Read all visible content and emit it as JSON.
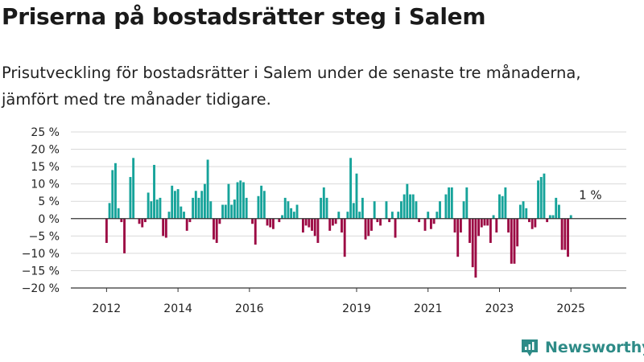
{
  "title": "Priserna på bostadsrätter steg i Salem",
  "subtitle": "Prisutveckling för bostadsrätter i Salem under de senaste tre månaderna, jämfört med tre månader tidigare.",
  "logo_text": "Newsworthy",
  "colors": {
    "positive": "#16a39a",
    "negative": "#9c0a44",
    "grid": "#d9d9d9",
    "axis": "#333333",
    "text": "#222222",
    "logo": "#2e8b87"
  },
  "chart_data": {
    "type": "bar",
    "title": "",
    "xlabel": "",
    "ylabel": "",
    "ylim": [
      -20,
      25
    ],
    "xlim": [
      2011.0,
      2026.55
    ],
    "y_ticks": [
      25,
      20,
      15,
      10,
      5,
      0,
      -5,
      -10,
      -15,
      -20
    ],
    "y_tick_labels": [
      "25 %",
      "20 %",
      "15 %",
      "10 %",
      "5 %",
      "0 %",
      "−5 %",
      "−10 %",
      "−15 %",
      "−20 %"
    ],
    "x_ticks": [
      2012,
      2014,
      2016,
      2019,
      2021,
      2023,
      2025
    ],
    "x_tick_labels": [
      "2012",
      "2014",
      "2016",
      "2019",
      "2021",
      "2023",
      "2025"
    ],
    "grid": true,
    "x_start": 2012.0,
    "x_step": 0.0833333,
    "values": [
      -7,
      4.5,
      14,
      16,
      3,
      -1,
      -10,
      0,
      12,
      17.5,
      0,
      -1.5,
      -2.5,
      -1,
      7.5,
      5,
      15.5,
      5.5,
      6,
      -5,
      -5.5,
      2,
      9.5,
      8,
      8.5,
      3.5,
      2,
      -3.5,
      -1,
      6,
      8,
      6,
      8,
      10,
      17,
      5,
      -6,
      -7,
      -1.5,
      4,
      4,
      10,
      4,
      5.5,
      10.5,
      11,
      10.5,
      6,
      0,
      -1.5,
      -7.5,
      6.5,
      9.5,
      8,
      -2,
      -2.5,
      -3,
      0,
      -1,
      1,
      6,
      5,
      3,
      2,
      4,
      0,
      -4,
      -2,
      -2.5,
      -3.5,
      -5,
      -7,
      6,
      9,
      6,
      -3.5,
      -2,
      -1.5,
      2,
      -4,
      -11,
      2,
      17.5,
      4.5,
      13,
      2,
      6,
      -6,
      -5,
      -3.5,
      5,
      -1,
      -2,
      0,
      5,
      -1,
      2,
      -5.5,
      2,
      5,
      7,
      10,
      7,
      7,
      5,
      -1,
      0,
      -3.5,
      2,
      -3,
      -1.5,
      2,
      5,
      0,
      7,
      9,
      9,
      -4,
      -11,
      -4,
      5,
      9,
      -7,
      -14,
      -17,
      -5,
      -2.5,
      -2,
      -2,
      -7,
      1,
      -4,
      7,
      6.5,
      9,
      -4,
      -13,
      -13,
      -8,
      4,
      5,
      3,
      -1,
      -3,
      -2.5,
      11,
      12,
      13,
      -1,
      1,
      1,
      6,
      4,
      -9,
      -9,
      -11,
      1
    ],
    "annotation": {
      "label": "1 %",
      "x": 2025.5,
      "y": 1
    }
  }
}
